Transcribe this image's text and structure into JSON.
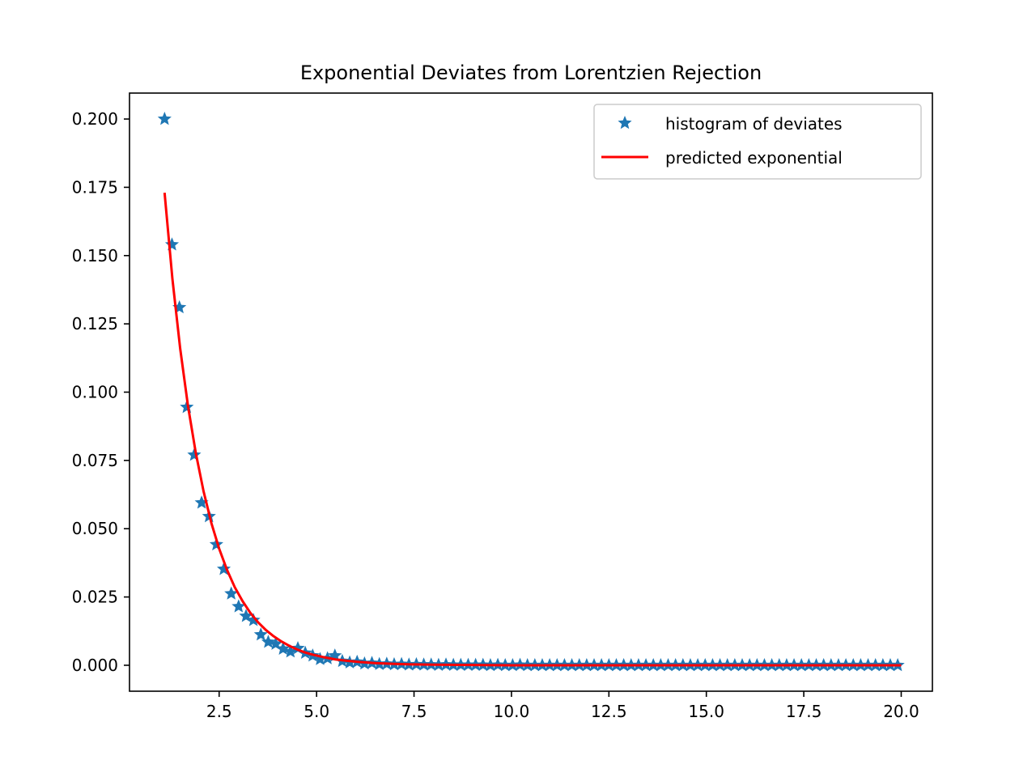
{
  "chart_data": {
    "type": "scatter",
    "title": "Exponential Deviates from Lorentzien Rejection",
    "xlabel": "",
    "ylabel": "",
    "xlim": [
      0.2,
      20.8
    ],
    "ylim": [
      -0.0095,
      0.2095
    ],
    "xticks": [
      {
        "value": 2.5,
        "label": "2.5"
      },
      {
        "value": 5.0,
        "label": "5.0"
      },
      {
        "value": 7.5,
        "label": "7.5"
      },
      {
        "value": 10.0,
        "label": "10.0"
      },
      {
        "value": 12.5,
        "label": "12.5"
      },
      {
        "value": 15.0,
        "label": "15.0"
      },
      {
        "value": 17.5,
        "label": "17.5"
      },
      {
        "value": 20.0,
        "label": "20.0"
      }
    ],
    "yticks": [
      {
        "value": 0.0,
        "label": "0.000"
      },
      {
        "value": 0.025,
        "label": "0.025"
      },
      {
        "value": 0.05,
        "label": "0.050"
      },
      {
        "value": 0.075,
        "label": "0.075"
      },
      {
        "value": 0.1,
        "label": "0.100"
      },
      {
        "value": 0.125,
        "label": "0.125"
      },
      {
        "value": 0.15,
        "label": "0.150"
      },
      {
        "value": 0.175,
        "label": "0.175"
      },
      {
        "value": 0.2,
        "label": "0.200"
      }
    ],
    "grid": false,
    "legend": {
      "position": "top-right",
      "entries": [
        {
          "label": "histogram of deviates",
          "marker": "star",
          "color": "#1f77b4"
        },
        {
          "label": "predicted exponential",
          "marker": "line",
          "color": "#ff0000"
        }
      ]
    },
    "series": [
      {
        "name": "histogram of deviates",
        "type": "scatter",
        "marker": "star",
        "color": "#1f77b4",
        "x": [
          1.1,
          1.29,
          1.48,
          1.67,
          1.86,
          2.05,
          2.24,
          2.43,
          2.62,
          2.81,
          3.0,
          3.19,
          3.38,
          3.57,
          3.76,
          3.95,
          4.14,
          4.33,
          4.52,
          4.71,
          4.9,
          5.09,
          5.28,
          5.47,
          5.66,
          5.85,
          6.04,
          6.23,
          6.42,
          6.61,
          6.8,
          6.99,
          7.18,
          7.37,
          7.56,
          7.75,
          7.94,
          8.13,
          8.32,
          8.51,
          8.7,
          8.89,
          9.08,
          9.27,
          9.46,
          9.65,
          9.84,
          10.03,
          10.22,
          10.41,
          10.6,
          10.79,
          10.98,
          11.17,
          11.36,
          11.55,
          11.74,
          11.93,
          12.12,
          12.31,
          12.5,
          12.69,
          12.88,
          13.07,
          13.26,
          13.45,
          13.64,
          13.83,
          14.02,
          14.21,
          14.4,
          14.59,
          14.78,
          14.97,
          15.16,
          15.35,
          15.54,
          15.73,
          15.92,
          16.11,
          16.3,
          16.49,
          16.68,
          16.87,
          17.06,
          17.25,
          17.44,
          17.63,
          17.82,
          18.01,
          18.2,
          18.39,
          18.58,
          18.77,
          18.96,
          19.15,
          19.34,
          19.53,
          19.72,
          19.91
        ],
        "y": [
          0.2,
          0.154,
          0.131,
          0.0945,
          0.077,
          0.0595,
          0.0545,
          0.0442,
          0.0352,
          0.0262,
          0.0215,
          0.018,
          0.0165,
          0.0112,
          0.0085,
          0.0078,
          0.006,
          0.005,
          0.0062,
          0.0045,
          0.0035,
          0.0022,
          0.0025,
          0.0035,
          0.0015,
          0.001,
          0.0012,
          0.0006,
          0.0008,
          0.0004,
          0.0005,
          0.0003,
          0.0004,
          0.0002,
          0.0003,
          0.0002,
          0.0002,
          0.0001,
          0.0002,
          0.0001,
          0.0001,
          0.0001,
          0.0001,
          0.0001,
          0.0,
          0.0001,
          0.0,
          0.0,
          0.0001,
          0.0,
          0.0,
          0.0,
          0.0,
          0.0,
          0.0,
          0.0,
          0.0,
          0.0,
          0.0,
          0.0,
          0.0,
          0.0,
          0.0,
          0.0,
          0.0,
          0.0,
          0.0,
          0.0,
          0.0,
          0.0,
          0.0,
          0.0,
          0.0,
          0.0,
          0.0,
          0.0,
          0.0,
          0.0,
          0.0,
          0.0,
          0.0,
          0.0,
          0.0,
          0.0,
          0.0,
          0.0,
          0.0,
          0.0,
          0.0,
          0.0,
          0.0,
          0.0,
          0.0,
          0.0,
          0.0,
          0.0,
          0.0,
          0.0,
          0.0,
          0.0
        ]
      },
      {
        "name": "predicted exponential",
        "type": "line",
        "color": "#ff0000",
        "x": [
          1.1,
          1.3,
          1.5,
          1.7,
          1.9,
          2.1,
          2.3,
          2.5,
          2.7,
          2.9,
          3.1,
          3.3,
          3.5,
          3.7,
          3.9,
          4.1,
          4.3,
          4.5,
          4.7,
          4.9,
          5.2,
          5.5,
          5.8,
          6.1,
          6.5,
          7.0,
          7.5,
          8.0,
          9.0,
          10.0,
          12.0,
          14.0,
          16.0,
          18.0,
          20.0
        ],
        "y": [
          0.173,
          0.1416,
          0.116,
          0.095,
          0.0778,
          0.0637,
          0.0521,
          0.0427,
          0.035,
          0.0286,
          0.0235,
          0.0192,
          0.0157,
          0.0129,
          0.0106,
          0.0087,
          0.0071,
          0.0058,
          0.0047,
          0.0039,
          0.0029,
          0.0021,
          0.0016,
          0.0012,
          0.0008,
          0.0005,
          0.0003,
          0.0002,
          0.0001,
          0.0,
          0.0,
          0.0,
          0.0,
          0.0,
          0.0
        ]
      }
    ]
  }
}
